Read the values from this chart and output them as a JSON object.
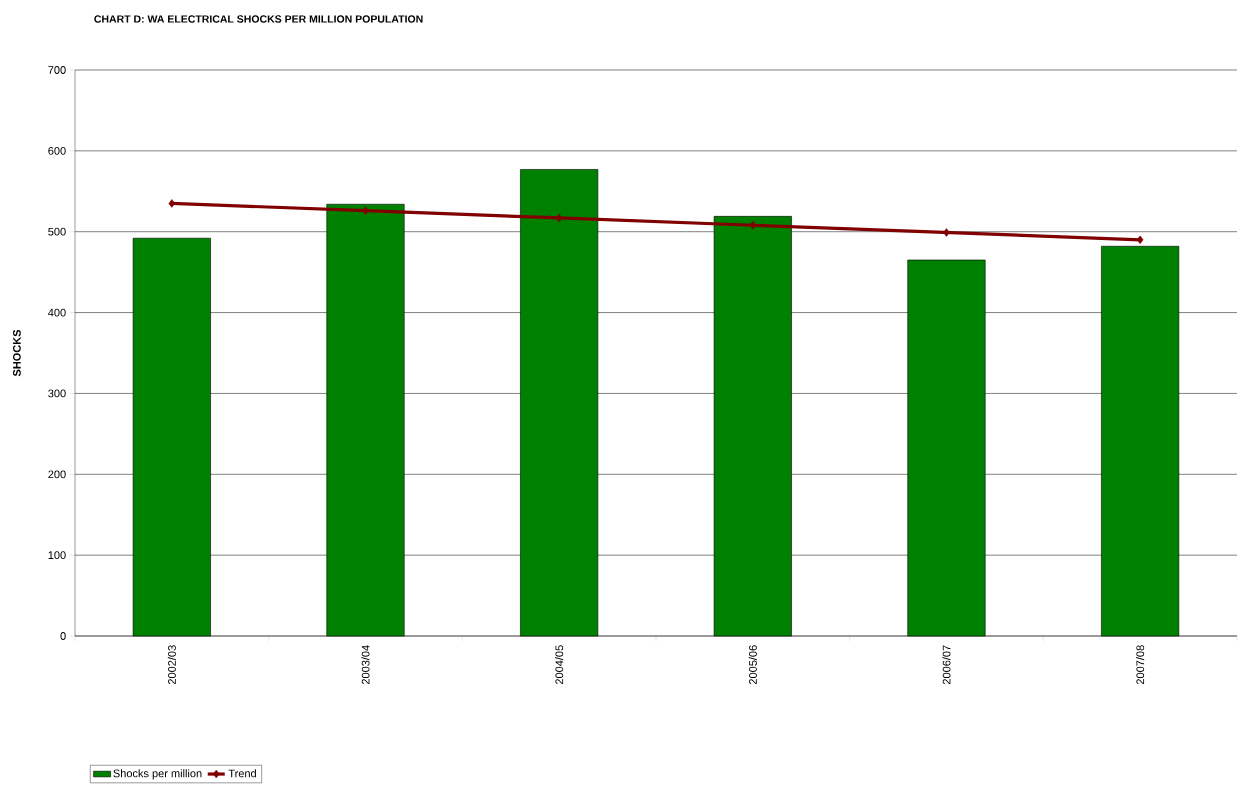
{
  "chart_data": {
    "type": "bar",
    "title": "CHART D: WA ELECTRICAL SHOCKS PER MILLION POPULATION",
    "ylabel": "SHOCKS",
    "categories": [
      "2002/03",
      "2003/04",
      "2004/05",
      "2005/06",
      "2006/07",
      "2007/08"
    ],
    "series": [
      {
        "name": "Shocks per million",
        "color": "#008000",
        "values": [
          492,
          534,
          577,
          519,
          465,
          482
        ]
      },
      {
        "name": "Trend",
        "type": "line",
        "color": "#800000",
        "marker": "diamond",
        "values": [
          535,
          526,
          517,
          508,
          499,
          490
        ]
      }
    ],
    "ylim": [
      0,
      700
    ],
    "yticks": [
      0,
      100,
      200,
      300,
      400,
      500,
      600,
      700
    ],
    "grid": "y",
    "legend": "bottom left"
  }
}
